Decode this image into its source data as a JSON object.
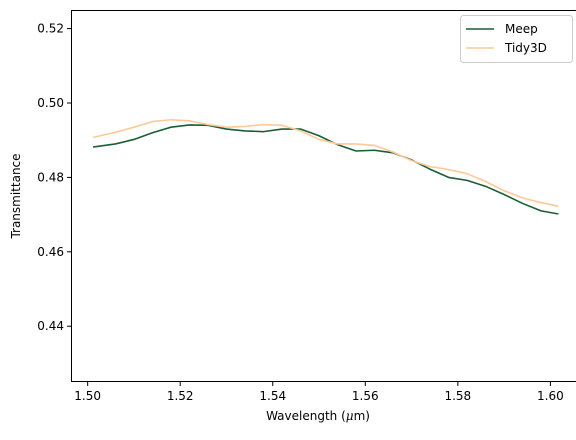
{
  "chart_data": {
    "type": "line",
    "title": "",
    "xlabel": "Wavelength (",
    "xlabel_mu": "μ",
    "xlabel_unit": "m)",
    "ylabel": "Transmittance",
    "xlim": [
      1.4964,
      1.6064
    ],
    "ylim": [
      0.425,
      0.525
    ],
    "xticks": [
      1.5,
      1.52,
      1.54,
      1.56,
      1.58,
      1.6
    ],
    "xtick_labels": [
      "1.50",
      "1.52",
      "1.54",
      "1.56",
      "1.58",
      "1.60"
    ],
    "yticks": [
      0.44,
      0.46,
      0.48,
      0.5,
      0.52
    ],
    "ytick_labels": [
      "0.44",
      "0.46",
      "0.48",
      "0.50",
      "0.52"
    ],
    "grid": false,
    "legend_position": "top-right",
    "series": [
      {
        "name": "Meep",
        "color": "#1a5e34",
        "x": [
          1.5013,
          1.506,
          1.51,
          1.514,
          1.518,
          1.522,
          1.526,
          1.53,
          1.534,
          1.538,
          1.542,
          1.546,
          1.55,
          1.554,
          1.558,
          1.562,
          1.566,
          1.57,
          1.574,
          1.578,
          1.582,
          1.586,
          1.59,
          1.594,
          1.598,
          1.6016
        ],
        "y": [
          0.4882,
          0.489,
          0.4902,
          0.492,
          0.4935,
          0.4941,
          0.494,
          0.493,
          0.4925,
          0.4923,
          0.493,
          0.493,
          0.4912,
          0.4888,
          0.4871,
          0.4873,
          0.4866,
          0.4847,
          0.4822,
          0.48,
          0.4792,
          0.4776,
          0.4754,
          0.473,
          0.471,
          0.4702
        ]
      },
      {
        "name": "Tidy3D",
        "color": "#fdc997",
        "x": [
          1.5013,
          1.506,
          1.51,
          1.514,
          1.518,
          1.522,
          1.526,
          1.53,
          1.534,
          1.538,
          1.542,
          1.546,
          1.55,
          1.554,
          1.558,
          1.562,
          1.566,
          1.57,
          1.574,
          1.578,
          1.582,
          1.586,
          1.59,
          1.594,
          1.598,
          1.6016
        ],
        "y": [
          0.4908,
          0.4921,
          0.4935,
          0.495,
          0.4955,
          0.4952,
          0.4942,
          0.4935,
          0.4937,
          0.4942,
          0.494,
          0.4925,
          0.4902,
          0.489,
          0.489,
          0.4886,
          0.4868,
          0.4845,
          0.4829,
          0.4821,
          0.481,
          0.4789,
          0.4764,
          0.4745,
          0.4732,
          0.4723
        ]
      }
    ]
  }
}
